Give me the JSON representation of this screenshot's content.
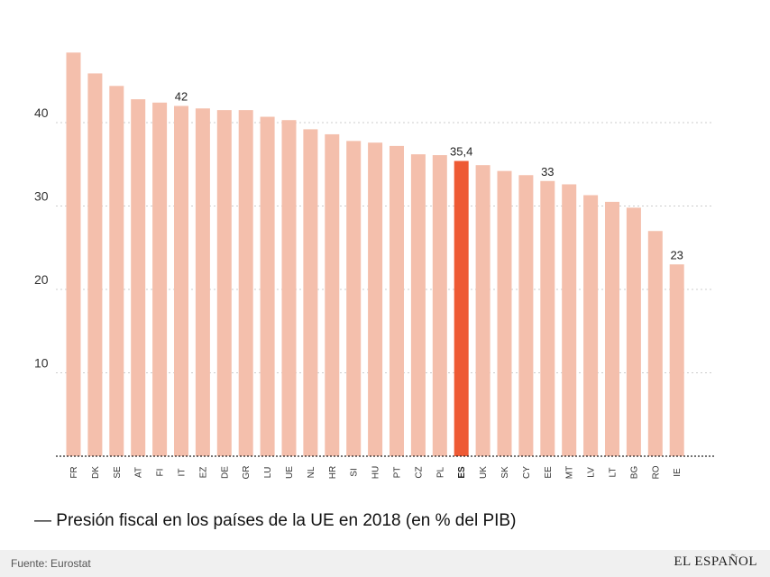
{
  "chart_data": {
    "type": "bar",
    "title": "— Presión fiscal en los países de la UE en 2018 (en % del PIB)",
    "xlabel": "",
    "ylabel": "",
    "ylim": [
      0,
      50
    ],
    "yticks": [
      10,
      20,
      30,
      40
    ],
    "grid": "horizontal-dotted",
    "highlight_category": "ES",
    "highlight_color": "#ee5a34",
    "bar_color": "#f4bfac",
    "categories": [
      "FR",
      "DK",
      "SE",
      "AT",
      "FI",
      "IT",
      "EZ",
      "DE",
      "GR",
      "LU",
      "UE",
      "NL",
      "HR",
      "SI",
      "HU",
      "PT",
      "CZ",
      "PL",
      "ES",
      "UK",
      "SK",
      "CY",
      "EE",
      "MT",
      "LV",
      "LT",
      "BG",
      "RO",
      "IE"
    ],
    "values": [
      48.4,
      45.9,
      44.4,
      42.8,
      42.4,
      42,
      41.7,
      41.5,
      41.5,
      40.7,
      40.3,
      39.2,
      38.6,
      37.8,
      37.6,
      37.2,
      36.2,
      36.1,
      35.4,
      34.9,
      34.2,
      33.7,
      33,
      32.6,
      31.3,
      30.5,
      29.8,
      27,
      23
    ],
    "data_labels": [
      {
        "category": "IT",
        "text": "42"
      },
      {
        "category": "ES",
        "text": "35,4"
      },
      {
        "category": "EE",
        "text": "33"
      },
      {
        "category": "IE",
        "text": "23"
      }
    ]
  },
  "footer": {
    "source": "Fuente: Eurostat",
    "brand": "EL ESPAÑOL"
  }
}
